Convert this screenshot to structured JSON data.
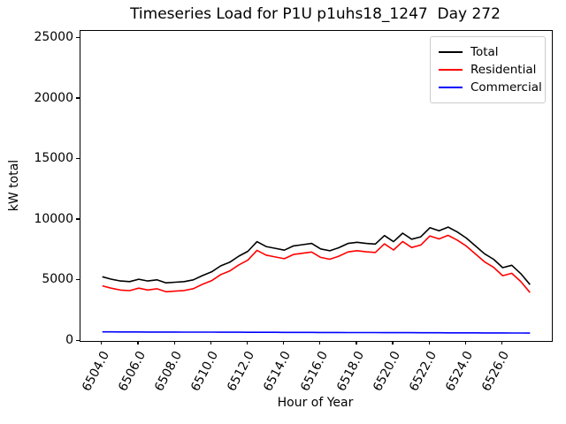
{
  "title": "Timeseries Load for P1U p1uhs18_1247  Day 272",
  "chart_data": {
    "type": "line",
    "title": "Timeseries Load for P1U p1uhs18_1247  Day 272",
    "xlabel": "Hour of Year",
    "ylabel": "kW total",
    "xlim": [
      6502.8,
      6528.7
    ],
    "ylim": [
      0,
      25600
    ],
    "grid": false,
    "legend_position": "upper right",
    "xticks": [
      6504.0,
      6506.0,
      6508.0,
      6510.0,
      6512.0,
      6514.0,
      6516.0,
      6518.0,
      6520.0,
      6522.0,
      6524.0,
      6526.0
    ],
    "xtick_labels": [
      "6504.0",
      "6506.0",
      "6508.0",
      "6510.0",
      "6512.0",
      "6514.0",
      "6516.0",
      "6518.0",
      "6520.0",
      "6522.0",
      "6524.0",
      "6526.0"
    ],
    "yticks": [
      0,
      5000,
      10000,
      15000,
      20000,
      25000
    ],
    "ytick_labels": [
      "0",
      "5000",
      "10000",
      "15000",
      "20000",
      "25000"
    ],
    "x_start": 6504.0,
    "x_step": 0.5,
    "series": [
      {
        "name": "Total",
        "color": "#000000",
        "values": [
          5300,
          5100,
          4950,
          4900,
          5100,
          4950,
          5050,
          4800,
          4850,
          4900,
          5050,
          5400,
          5700,
          6200,
          6500,
          7000,
          7400,
          8200,
          7800,
          7650,
          7500,
          7850,
          7950,
          8050,
          7600,
          7450,
          7700,
          8050,
          8150,
          8050,
          8000,
          8700,
          8200,
          8900,
          8400,
          8600,
          9350,
          9100,
          9400,
          9000,
          8500,
          7850,
          7200,
          6750,
          6050,
          6250,
          5550,
          4650
        ]
      },
      {
        "name": "Residential",
        "color": "#ff0000",
        "values": [
          4550,
          4352,
          4204,
          4156,
          4358,
          4210,
          4312,
          4064,
          4116,
          4168,
          4320,
          4672,
          4974,
          5476,
          5778,
          6280,
          6682,
          7484,
          7086,
          6938,
          6790,
          7142,
          7244,
          7346,
          6898,
          6750,
          7002,
          7354,
          7456,
          7358,
          7310,
          8012,
          7514,
          8216,
          7718,
          7920,
          8672,
          8424,
          8726,
          8328,
          7830,
          7182,
          6534,
          6086,
          5388,
          5590,
          4895,
          4000
        ]
      },
      {
        "name": "Commercial",
        "color": "#0000ff",
        "values": [
          750,
          748,
          746,
          744,
          742,
          740,
          738,
          736,
          734,
          732,
          730,
          728,
          726,
          724,
          722,
          720,
          718,
          716,
          714,
          712,
          710,
          708,
          706,
          704,
          702,
          700,
          698,
          696,
          694,
          692,
          690,
          688,
          686,
          684,
          682,
          680,
          678,
          676,
          674,
          672,
          670,
          668,
          666,
          664,
          662,
          660,
          655,
          650
        ]
      }
    ]
  }
}
